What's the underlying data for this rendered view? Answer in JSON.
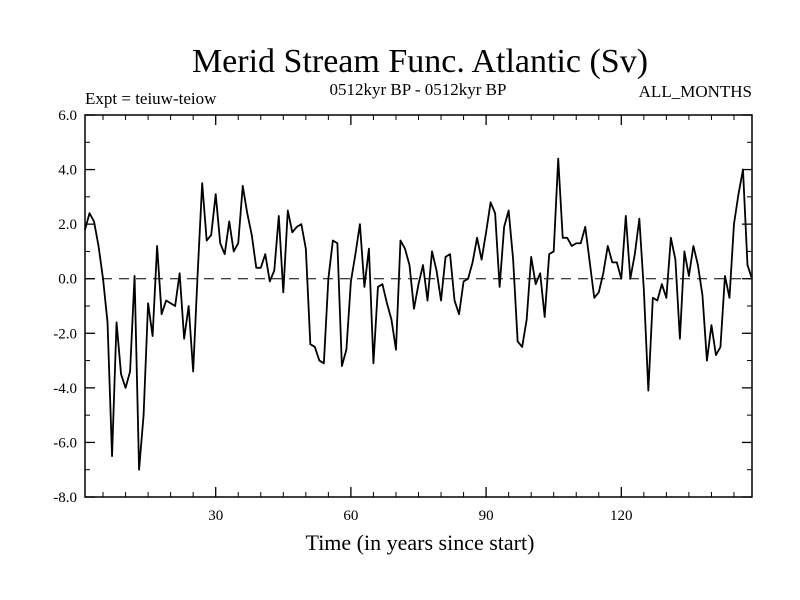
{
  "chart_data": {
    "type": "line",
    "title": "Merid Stream Func. Atlantic (Sv)",
    "subtitle_left": "Expt = teiuw-teiow",
    "subtitle_center": "0512kyr BP - 0512kyr BP",
    "subtitle_right": "ALL_MONTHS",
    "xlabel": "Time (in years since start)",
    "ylabel": "",
    "xlim": [
      1,
      149
    ],
    "ylim": [
      -8,
      6
    ],
    "xticks": [
      30,
      60,
      90,
      120
    ],
    "xtick_labels": [
      "30",
      "60",
      "90",
      "120"
    ],
    "yticks": [
      -8,
      -6,
      -4,
      -2,
      0,
      2,
      4,
      6
    ],
    "ytick_labels": [
      "-8.0",
      "-6.0",
      "-4.0",
      "-2.0",
      "0.0",
      "2.0",
      "4.0",
      "6.0"
    ],
    "zero_line": 0,
    "series": [
      {
        "name": "Merid Stream Func. Atlantic",
        "x": [
          1,
          2,
          3,
          4,
          5,
          6,
          7,
          8,
          9,
          10,
          11,
          12,
          13,
          14,
          15,
          16,
          17,
          18,
          19,
          20,
          21,
          22,
          23,
          24,
          25,
          26,
          27,
          28,
          29,
          30,
          31,
          32,
          33,
          34,
          35,
          36,
          37,
          38,
          39,
          40,
          41,
          42,
          43,
          44,
          45,
          46,
          47,
          48,
          49,
          50,
          51,
          52,
          53,
          54,
          55,
          56,
          57,
          58,
          59,
          60,
          61,
          62,
          63,
          64,
          65,
          66,
          67,
          68,
          69,
          70,
          71,
          72,
          73,
          74,
          75,
          76,
          77,
          78,
          79,
          80,
          81,
          82,
          83,
          84,
          85,
          86,
          87,
          88,
          89,
          90,
          91,
          92,
          93,
          94,
          95,
          96,
          97,
          98,
          99,
          100,
          101,
          102,
          103,
          104,
          105,
          106,
          107,
          108,
          109,
          110,
          111,
          112,
          113,
          114,
          115,
          116,
          117,
          118,
          119,
          120,
          121,
          122,
          123,
          124,
          125,
          126,
          127,
          128,
          129,
          130,
          131,
          132,
          133,
          134,
          135,
          136,
          137,
          138,
          139,
          140,
          141,
          142,
          143,
          144,
          145,
          146,
          147,
          148,
          149
        ],
        "values": [
          1.8,
          2.4,
          2.1,
          1.2,
          0.0,
          -1.6,
          -6.5,
          -1.6,
          -3.5,
          -4.0,
          -3.4,
          0.1,
          -7.0,
          -5.0,
          -0.9,
          -2.1,
          1.2,
          -1.3,
          -0.8,
          -0.9,
          -1.0,
          0.2,
          -2.2,
          -1.0,
          -3.4,
          0.2,
          3.5,
          1.4,
          1.6,
          3.1,
          1.3,
          0.9,
          2.1,
          1.0,
          1.3,
          3.4,
          2.4,
          1.6,
          0.4,
          0.4,
          0.9,
          -0.1,
          0.3,
          2.3,
          -0.5,
          2.5,
          1.7,
          1.9,
          2.0,
          1.1,
          -2.4,
          -2.5,
          -3.0,
          -3.1,
          0.0,
          1.4,
          1.3,
          -3.2,
          -2.6,
          -0.1,
          0.9,
          2.0,
          -0.3,
          1.1,
          -3.1,
          -0.3,
          -0.2,
          -0.9,
          -1.5,
          -2.6,
          1.4,
          1.1,
          0.5,
          -1.1,
          -0.2,
          0.5,
          -0.8,
          1.0,
          0.3,
          -0.8,
          0.8,
          0.9,
          -0.8,
          -1.3,
          -0.1,
          0.0,
          0.6,
          1.5,
          0.7,
          1.7,
          2.8,
          2.4,
          -0.3,
          1.9,
          2.5,
          0.7,
          -2.3,
          -2.5,
          -1.5,
          0.8,
          -0.2,
          0.2,
          -1.4,
          0.9,
          1.0,
          4.4,
          1.5,
          1.5,
          1.2,
          1.3,
          1.3,
          1.9,
          0.6,
          -0.7,
          -0.5,
          0.2,
          1.2,
          0.6,
          0.6,
          0.0,
          2.3,
          0.0,
          0.9,
          2.2,
          -0.4,
          -4.1,
          -0.7,
          -0.8,
          -0.2,
          -0.7,
          1.5,
          0.7,
          -2.2,
          1.0,
          0.1,
          1.2,
          0.5,
          -0.6,
          -3.0,
          -1.7,
          -2.8,
          -2.5,
          0.1,
          -0.7,
          2.0,
          3.1,
          4.0,
          0.5,
          0.0
        ]
      }
    ]
  }
}
